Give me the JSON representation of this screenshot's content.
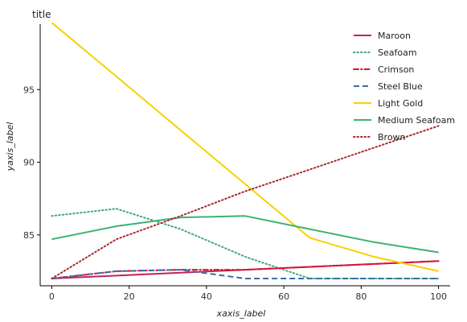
{
  "chart_data": {
    "type": "line",
    "title": "title",
    "xlabel": "xaxis_label",
    "ylabel": "yaxis_label",
    "xlim": [
      -3,
      103
    ],
    "ylim": [
      81.5,
      99.5
    ],
    "xticks": [
      0,
      20,
      40,
      60,
      80,
      100
    ],
    "yticks": [
      85,
      90,
      95
    ],
    "grid": false,
    "legend_position": "top-right",
    "x": [
      0,
      16.7,
      33.3,
      50,
      66.7,
      83.3,
      100
    ],
    "series": [
      {
        "name": "Maroon",
        "color": "#c0245a",
        "dash": "solid",
        "values": [
          82.0,
          82.2,
          82.4,
          82.6,
          82.8,
          83.0,
          83.2
        ]
      },
      {
        "name": "Seafoam",
        "color": "#3fa882",
        "dash": "dot",
        "values": [
          86.3,
          86.8,
          85.4,
          83.5,
          82.0,
          82.0,
          82.0
        ]
      },
      {
        "name": "Crimson",
        "color": "#dd1133",
        "dash": "dashdot",
        "values": [
          82.0,
          82.5,
          82.6,
          82.6,
          82.8,
          83.0,
          83.2
        ]
      },
      {
        "name": "Steel Blue",
        "color": "#3a6ea5",
        "dash": "dash",
        "values": [
          82.0,
          82.5,
          82.6,
          82.0,
          82.0,
          82.0,
          82.0
        ]
      },
      {
        "name": "Light Gold",
        "color": "#f8d000",
        "dash": "solid",
        "values": [
          99.6,
          95.9,
          92.2,
          88.5,
          84.8,
          83.5,
          82.5
        ]
      },
      {
        "name": "Medium Seafoam",
        "color": "#3cb371",
        "dash": "solid",
        "values": [
          84.7,
          85.6,
          86.2,
          86.3,
          85.4,
          84.5,
          83.8
        ]
      },
      {
        "name": "Brown",
        "color": "#a52a2a",
        "dash": "dot",
        "values": [
          82.0,
          84.7,
          86.3,
          88.0,
          89.5,
          91.0,
          92.5
        ]
      }
    ]
  }
}
